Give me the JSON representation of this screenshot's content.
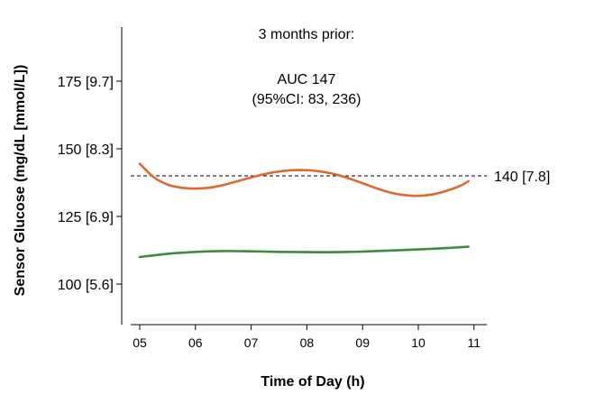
{
  "chart_data": {
    "type": "line",
    "title": "",
    "xlabel": "Time of Day (h)",
    "ylabel": "Sensor Glucose (mg/dL [mmol/L])",
    "xlim": [
      4.75,
      11.25
    ],
    "ylim": [
      85,
      192
    ],
    "x_ticks": [
      5,
      6,
      7,
      8,
      9,
      10,
      11
    ],
    "x_tick_labels": [
      "05",
      "06",
      "07",
      "08",
      "09",
      "10",
      "11"
    ],
    "y_ticks": [
      100,
      125,
      150,
      175
    ],
    "y_tick_labels": [
      "100 [5.6]",
      "125 [6.9]",
      "150 [8.3]",
      "175 [9.7]"
    ],
    "grid": false,
    "legend": "none",
    "annotations": {
      "period": "3 months prior:",
      "auc": "AUC 147",
      "ci": "(95%CI: 83, 236)"
    },
    "reference_line": {
      "y": 140,
      "label": "140 [7.8]",
      "style": "dashed",
      "color": "#000000",
      "label_color": "#1f3a6e"
    },
    "series": [
      {
        "color": "#e0692f",
        "x": [
          5.0,
          5.25,
          5.5,
          5.75,
          6.0,
          6.25,
          6.5,
          6.75,
          7.0,
          7.25,
          7.5,
          7.75,
          8.0,
          8.25,
          8.5,
          8.75,
          9.0,
          9.25,
          9.5,
          9.75,
          10.0,
          10.25,
          10.5,
          10.75,
          10.9
        ],
        "values": [
          144.5,
          139.5,
          136.8,
          135.6,
          135.3,
          135.6,
          136.6,
          138.0,
          139.4,
          140.7,
          141.6,
          142.1,
          142.1,
          141.6,
          140.6,
          139.1,
          137.3,
          135.4,
          133.8,
          132.9,
          132.6,
          133.1,
          134.4,
          136.3,
          138.0
        ]
      },
      {
        "color": "#3e8a3e",
        "x": [
          5.0,
          5.5,
          6.0,
          6.5,
          7.0,
          7.5,
          8.0,
          8.5,
          9.0,
          9.5,
          10.0,
          10.5,
          10.9
        ],
        "values": [
          110.0,
          111.2,
          111.9,
          112.2,
          112.1,
          111.9,
          111.8,
          111.8,
          112.0,
          112.4,
          112.8,
          113.3,
          113.8
        ]
      }
    ]
  }
}
